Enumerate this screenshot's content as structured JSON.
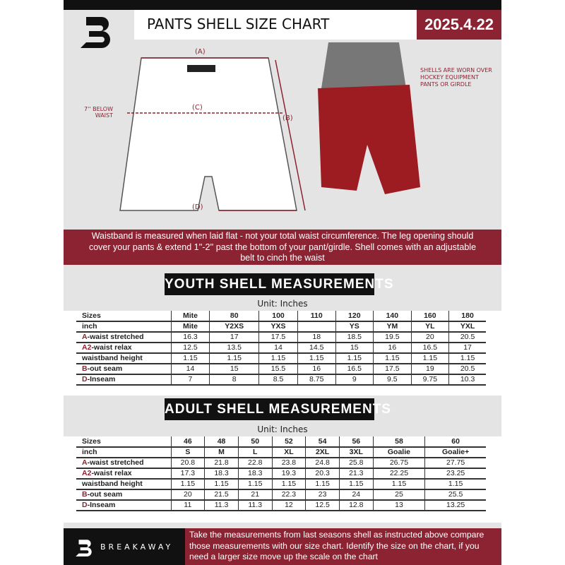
{
  "header": {
    "title": "PANTS SHELL SIZE CHART",
    "date": "2025.4.22"
  },
  "diagram": {
    "label_a": "(A)",
    "label_b": "(B)",
    "label_c": "(C)",
    "label_d": "(D)",
    "below_waist": "7'' BELOW WAIST"
  },
  "photo_note": "SHELLS ARE WORN OVER HOCKEY EQUIPMENT PANTS OR GIRDLE",
  "info_band": "Waistband is measured when laid flat - not your total waist circumference. The leg opening should cover your pants & extend 1''-2'' past the bottom of your pant/girdle. Shell comes with an adjustable belt to cinch the waist",
  "youth": {
    "title": "YOUTH SHELL MEASUREMENTS",
    "unit": "Unit: Inches",
    "rows": [
      {
        "p": "",
        "label": "Sizes",
        "cells": [
          "Mite",
          "80",
          "100",
          "110",
          "120",
          "140",
          "160",
          "180"
        ]
      },
      {
        "p": "",
        "label": "inch",
        "cells": [
          "Mite",
          "Y2XS",
          "YXS",
          "",
          "YS",
          "YM",
          "YL",
          "YXL"
        ]
      },
      {
        "p": "A",
        "label": "-waist stretched",
        "cells": [
          "16.3",
          "17",
          "17.5",
          "18",
          "18.5",
          "19.5",
          "20",
          "20.5"
        ]
      },
      {
        "p": "A2",
        "label": "-waist relax",
        "cells": [
          "12.5",
          "13.5",
          "14",
          "14.5",
          "15",
          "16",
          "16.5",
          "17"
        ]
      },
      {
        "p": "",
        "label": "waistband height",
        "cells": [
          "1.15",
          "1.15",
          "1.15",
          "1.15",
          "1.15",
          "1.15",
          "1.15",
          "1.15"
        ]
      },
      {
        "p": "B",
        "label": "-out seam",
        "cells": [
          "14",
          "15",
          "15.5",
          "16",
          "16.5",
          "17.5",
          "19",
          "20.5"
        ]
      },
      {
        "p": "D",
        "label": "-Inseam",
        "cells": [
          "7",
          "8",
          "8.5",
          "8.75",
          "9",
          "9.5",
          "9.75",
          "10.3"
        ]
      }
    ]
  },
  "adult": {
    "title": "ADULT SHELL MEASUREMENTS",
    "unit": "Unit: Inches",
    "rows": [
      {
        "p": "",
        "label": "Sizes",
        "cells": [
          "46",
          "48",
          "50",
          "52",
          "54",
          "56",
          "58",
          "60"
        ]
      },
      {
        "p": "",
        "label": "inch",
        "cells": [
          "S",
          "M",
          "L",
          "XL",
          "2XL",
          "3XL",
          "Goalie",
          "Goalie+"
        ]
      },
      {
        "p": "A",
        "label": "-waist stretched",
        "cells": [
          "20.8",
          "21.8",
          "22.8",
          "23.8",
          "24.8",
          "25.8",
          "26.75",
          "27.75"
        ]
      },
      {
        "p": "A2",
        "label": "-waist relax",
        "cells": [
          "17.3",
          "18.3",
          "18.3",
          "19.3",
          "20.3",
          "21.3",
          "22.25",
          "23.25"
        ]
      },
      {
        "p": "",
        "label": "waistband height",
        "cells": [
          "1.15",
          "1.15",
          "1.15",
          "1.15",
          "1.15",
          "1.15",
          "1.15",
          "1.15"
        ]
      },
      {
        "p": "B",
        "label": "-out seam",
        "cells": [
          "20",
          "21.5",
          "21",
          "22.3",
          "23",
          "24",
          "25",
          "25.5"
        ]
      },
      {
        "p": "D",
        "label": "-Inseam",
        "cells": [
          "11",
          "11.3",
          "11.3",
          "12",
          "12.5",
          "12.8",
          "13",
          "13.25"
        ]
      }
    ]
  },
  "footer": {
    "brand": "BREAKAWAY",
    "text": "Take the measurements from last seasons shell as instructed above compare those measurements  with our size chart. Identify the size on the chart, if you need a larger size move up the scale on the chart"
  },
  "colors": {
    "accent": "#8b2332",
    "dark": "#111111",
    "background": "#e4e4e4"
  }
}
